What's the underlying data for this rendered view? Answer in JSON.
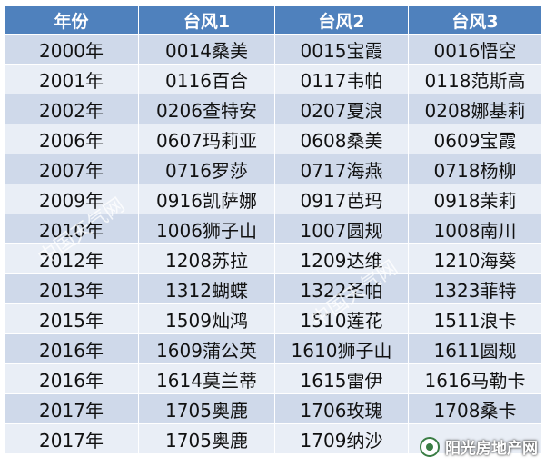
{
  "table": {
    "headers": [
      "年份",
      "台风1",
      "台风2",
      "台风3"
    ],
    "rows": [
      [
        "2000年",
        "0014桑美",
        "0015宝霞",
        "0016悟空"
      ],
      [
        "2001年",
        "0116百合",
        "0117韦帕",
        "0118范斯高"
      ],
      [
        "2002年",
        "0206查特安",
        "0207夏浪",
        "0208娜基莉"
      ],
      [
        "2006年",
        "0607玛莉亚",
        "0608桑美",
        "0609宝霞"
      ],
      [
        "2007年",
        "0716罗莎",
        "0717海燕",
        "0718杨柳"
      ],
      [
        "2009年",
        "0916凯萨娜",
        "0917芭玛",
        "0918茉莉"
      ],
      [
        "2010年",
        "1006狮子山",
        "1007圆规",
        "1008南川"
      ],
      [
        "2012年",
        "1208苏拉",
        "1209达维",
        "1210海葵"
      ],
      [
        "2013年",
        "1312蝴蝶",
        "1322圣帕",
        "1323菲特"
      ],
      [
        "2015年",
        "1509灿鸿",
        "1510莲花",
        "1511浪卡"
      ],
      [
        "2016年",
        "1609蒲公英",
        "1610狮子山",
        "1611圆规"
      ],
      [
        "2016年",
        "1614莫兰蒂",
        "1615雷伊",
        "1616马勒卡"
      ],
      [
        "2017年",
        "1705奥鹿",
        "1706玫瑰",
        "1708桑卡"
      ],
      [
        "2017年",
        "1705奥鹿",
        "1709纳沙",
        ""
      ]
    ]
  },
  "watermark": {
    "left_text": "中国天气网",
    "mid_text": "中国天气网"
  },
  "brand": {
    "label": "阳光房地产网",
    "logo_icon": "wechat-logo-icon",
    "logo_color": "#3a7d44"
  },
  "colors": {
    "header_bg": "#4f81bd",
    "row_odd": "#cfd9ea",
    "row_even": "#e9eef6"
  }
}
